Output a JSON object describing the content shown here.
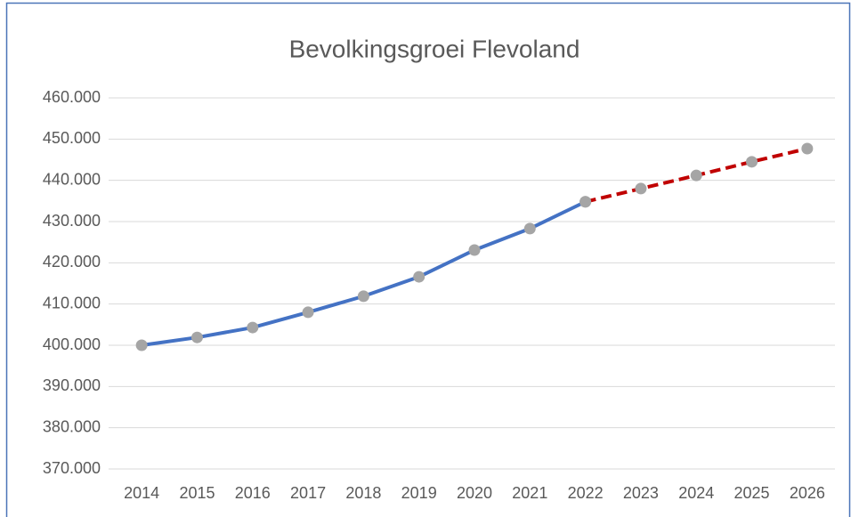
{
  "chart_data": {
    "type": "line",
    "title": "Bevolkingsgroei Flevoland",
    "categories": [
      "2014",
      "2015",
      "2016",
      "2017",
      "2018",
      "2019",
      "2020",
      "2021",
      "2022",
      "2023",
      "2024",
      "2025",
      "2026"
    ],
    "series": [
      {
        "color": "#4472c4",
        "dashed": false,
        "values": [
          400000,
          401900,
          404300,
          408000,
          411900,
          416600,
          423100,
          428300,
          434800,
          null,
          null,
          null,
          null
        ]
      },
      {
        "color": "#c00000",
        "dashed": true,
        "values": [
          null,
          null,
          null,
          null,
          null,
          null,
          null,
          null,
          434800,
          438000,
          441200,
          444500,
          447700
        ]
      }
    ],
    "marker_color": "#a5a5a5",
    "ylim": [
      370000,
      460000
    ],
    "yticks": [
      {
        "value": 370000,
        "label": "370.000"
      },
      {
        "value": 380000,
        "label": "380.000"
      },
      {
        "value": 390000,
        "label": "390.000"
      },
      {
        "value": 400000,
        "label": "400.000"
      },
      {
        "value": 410000,
        "label": "410.000"
      },
      {
        "value": 420000,
        "label": "420.000"
      },
      {
        "value": 430000,
        "label": "430.000"
      },
      {
        "value": 440000,
        "label": "440.000"
      },
      {
        "value": 450000,
        "label": "450.000"
      },
      {
        "value": 460000,
        "label": "460.000"
      }
    ],
    "grid": true
  }
}
